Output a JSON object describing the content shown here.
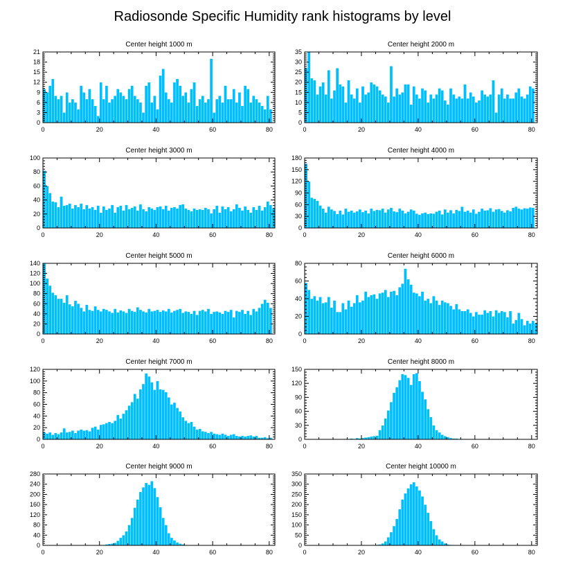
{
  "chart_data": {
    "type": "bar",
    "title": "Radiosonde Specific Humidity rank histograms by level",
    "colors": {
      "bar": "#00BFFF",
      "axis": "#000000",
      "background": "#FFFFFF"
    },
    "panels": [
      {
        "title": "Center height 1000 m",
        "xlim": [
          0,
          82
        ],
        "ylim": [
          0,
          21
        ],
        "xticks": [
          0,
          20,
          40,
          60,
          80
        ],
        "yticks": [
          0,
          3,
          6,
          9,
          12,
          15,
          18,
          21
        ],
        "values": [
          10,
          9,
          11,
          13,
          8,
          7,
          8,
          3,
          9,
          6,
          7,
          6,
          4,
          11,
          9,
          7,
          10,
          7,
          5,
          2,
          12,
          7,
          11,
          6,
          7,
          8,
          10,
          9,
          8,
          7,
          10,
          11,
          8,
          7,
          6,
          3,
          11,
          12,
          6,
          8,
          4,
          14,
          16,
          9,
          7,
          6,
          12,
          13,
          11,
          8,
          9,
          6,
          10,
          12,
          5,
          7,
          8,
          6,
          7,
          19,
          3,
          7,
          8,
          6,
          11,
          7,
          7,
          10,
          6,
          9,
          5,
          11,
          10,
          6,
          8,
          7,
          6,
          5,
          4,
          8,
          4
        ]
      },
      {
        "title": "Center height 2000 m",
        "xlim": [
          0,
          82
        ],
        "ylim": [
          0,
          35
        ],
        "xticks": [
          0,
          20,
          40,
          60,
          80
        ],
        "yticks": [
          0,
          5,
          10,
          15,
          20,
          25,
          30,
          35
        ],
        "values": [
          27,
          35,
          22,
          21,
          14,
          18,
          20,
          14,
          26,
          12,
          16,
          27,
          19,
          18,
          10,
          21,
          14,
          12,
          17,
          10,
          18,
          14,
          15,
          20,
          19,
          18,
          16,
          14,
          13,
          10,
          28,
          13,
          17,
          14,
          15,
          19,
          19,
          9,
          18,
          14,
          12,
          17,
          16,
          10,
          14,
          12,
          14,
          17,
          16,
          11,
          9,
          17,
          14,
          12,
          13,
          12,
          19,
          12,
          15,
          13,
          10,
          11,
          16,
          14,
          13,
          14,
          21,
          5,
          14,
          17,
          12,
          14,
          12,
          12,
          15,
          17,
          13,
          12,
          14,
          18,
          17
        ]
      },
      {
        "title": "Center height 3000 m",
        "xlim": [
          0,
          82
        ],
        "ylim": [
          0,
          100
        ],
        "xticks": [
          0,
          20,
          40,
          60,
          80
        ],
        "yticks": [
          0,
          20,
          40,
          60,
          80,
          100
        ],
        "values": [
          82,
          60,
          50,
          38,
          37,
          30,
          45,
          32,
          33,
          35,
          28,
          33,
          30,
          35,
          27,
          33,
          28,
          30,
          26,
          32,
          22,
          31,
          26,
          28,
          33,
          22,
          30,
          32,
          25,
          33,
          27,
          29,
          31,
          25,
          34,
          27,
          24,
          30,
          28,
          26,
          30,
          31,
          27,
          32,
          25,
          29,
          30,
          28,
          33,
          34,
          28,
          26,
          24,
          28,
          26,
          27,
          26,
          29,
          27,
          21,
          27,
          32,
          22,
          31,
          27,
          30,
          24,
          27,
          34,
          29,
          25,
          31,
          26,
          22,
          30,
          26,
          32,
          25,
          30,
          38,
          33,
          28
        ]
      },
      {
        "title": "Center height 4000 m",
        "xlim": [
          0,
          82
        ],
        "ylim": [
          0,
          180
        ],
        "xticks": [
          0,
          20,
          40,
          60,
          80
        ],
        "yticks": [
          0,
          30,
          60,
          90,
          120,
          150,
          180
        ],
        "values": [
          165,
          120,
          78,
          75,
          70,
          58,
          50,
          40,
          55,
          48,
          44,
          36,
          45,
          35,
          50,
          42,
          45,
          40,
          43,
          48,
          41,
          45,
          38,
          50,
          44,
          47,
          46,
          50,
          40,
          48,
          52,
          43,
          41,
          50,
          45,
          38,
          42,
          48,
          45,
          37,
          34,
          38,
          40,
          36,
          38,
          37,
          42,
          45,
          35,
          48,
          40,
          46,
          38,
          47,
          44,
          55,
          42,
          45,
          40,
          48,
          37,
          42,
          50,
          45,
          46,
          51,
          42,
          48,
          49,
          44,
          40,
          46,
          43,
          52,
          55,
          50,
          48,
          51,
          50,
          53,
          52
        ]
      },
      {
        "title": "Center height 5000 m",
        "xlim": [
          0,
          82
        ],
        "ylim": [
          0,
          140
        ],
        "xticks": [
          0,
          20,
          40,
          60,
          80
        ],
        "yticks": [
          0,
          20,
          40,
          60,
          80,
          100,
          120,
          140
        ],
        "values": [
          140,
          110,
          96,
          82,
          77,
          70,
          70,
          62,
          77,
          59,
          55,
          66,
          60,
          52,
          45,
          58,
          48,
          46,
          55,
          48,
          45,
          50,
          48,
          45,
          42,
          50,
          43,
          47,
          45,
          42,
          50,
          46,
          44,
          53,
          48,
          45,
          43,
          50,
          45,
          46,
          48,
          44,
          47,
          45,
          50,
          43,
          46,
          48,
          50,
          42,
          45,
          44,
          40,
          46,
          38,
          46,
          48,
          45,
          50,
          40,
          44,
          45,
          43,
          40,
          46,
          44,
          48,
          33,
          46,
          44,
          48,
          40,
          46,
          38,
          50,
          45,
          52,
          60,
          68,
          62,
          52
        ]
      },
      {
        "title": "Center height 6000 m",
        "xlim": [
          0,
          82
        ],
        "ylim": [
          0,
          80
        ],
        "xticks": [
          0,
          20,
          40,
          60,
          80
        ],
        "yticks": [
          0,
          20,
          40,
          60,
          80
        ],
        "values": [
          58,
          50,
          40,
          43,
          38,
          42,
          35,
          36,
          42,
          30,
          38,
          25,
          25,
          35,
          28,
          38,
          31,
          35,
          44,
          36,
          38,
          48,
          42,
          44,
          45,
          40,
          46,
          47,
          50,
          42,
          48,
          49,
          44,
          53,
          57,
          74,
          62,
          56,
          47,
          46,
          43,
          48,
          38,
          40,
          35,
          43,
          38,
          33,
          38,
          36,
          35,
          32,
          28,
          34,
          28,
          26,
          26,
          28,
          24,
          20,
          25,
          22,
          22,
          27,
          24,
          26,
          20,
          27,
          24,
          26,
          25,
          19,
          26,
          12,
          16,
          24,
          17,
          10,
          15,
          12,
          15,
          12
        ]
      },
      {
        "title": "Center height 7000 m",
        "xlim": [
          0,
          82
        ],
        "ylim": [
          0,
          120
        ],
        "xticks": [
          0,
          20,
          40,
          60,
          80
        ],
        "yticks": [
          0,
          20,
          40,
          60,
          80,
          100,
          120
        ],
        "values": [
          12,
          10,
          12,
          8,
          11,
          9,
          12,
          19,
          12,
          13,
          15,
          11,
          15,
          17,
          15,
          16,
          14,
          20,
          22,
          17,
          25,
          26,
          28,
          30,
          28,
          32,
          42,
          36,
          44,
          50,
          58,
          64,
          78,
          70,
          86,
          95,
          113,
          108,
          98,
          85,
          100,
          86,
          85,
          81,
          72,
          60,
          63,
          54,
          48,
          38,
          32,
          28,
          30,
          22,
          17,
          18,
          14,
          13,
          11,
          13,
          10,
          9,
          8,
          10,
          8,
          6,
          8,
          9,
          6,
          5,
          6,
          5,
          6,
          7,
          5,
          6,
          3,
          3,
          4,
          2,
          3
        ]
      },
      {
        "title": "Center height 8000 m",
        "xlim": [
          0,
          82
        ],
        "ylim": [
          0,
          150
        ],
        "xticks": [
          0,
          20,
          40,
          60,
          80
        ],
        "yticks": [
          0,
          30,
          60,
          90,
          120,
          150
        ],
        "values": [
          0,
          0,
          0,
          0,
          0,
          0,
          0,
          0,
          0,
          0,
          0,
          0,
          0,
          0,
          1,
          1,
          2,
          1,
          3,
          2,
          3,
          4,
          5,
          6,
          7,
          8,
          20,
          30,
          45,
          62,
          80,
          100,
          112,
          127,
          140,
          138,
          132,
          117,
          140,
          142,
          125,
          102,
          86,
          65,
          48,
          30,
          20,
          15,
          10,
          7,
          5,
          3,
          2,
          2,
          1,
          1,
          1,
          0,
          0,
          0,
          0,
          0,
          0,
          0,
          0,
          0,
          0,
          0,
          0,
          0,
          0,
          0,
          0,
          0,
          0,
          0,
          0,
          0,
          0,
          0,
          0
        ]
      },
      {
        "title": "Center height 9000 m",
        "xlim": [
          0,
          82
        ],
        "ylim": [
          0,
          280
        ],
        "xticks": [
          0,
          20,
          40,
          60,
          80
        ],
        "yticks": [
          0,
          40,
          80,
          120,
          160,
          200,
          240,
          280
        ],
        "values": [
          0,
          0,
          0,
          0,
          0,
          0,
          0,
          0,
          0,
          0,
          0,
          0,
          0,
          0,
          0,
          0,
          0,
          0,
          0,
          0,
          2,
          2,
          4,
          6,
          7,
          10,
          18,
          30,
          40,
          55,
          80,
          108,
          148,
          180,
          210,
          228,
          245,
          238,
          252,
          225,
          190,
          150,
          108,
          80,
          48,
          30,
          20,
          12,
          7,
          4,
          2,
          1,
          1,
          0,
          0,
          0,
          0,
          0,
          0,
          0,
          0,
          0,
          0,
          0,
          0,
          0,
          0,
          0,
          0,
          0,
          0,
          0,
          0,
          0,
          0,
          0,
          0,
          0,
          0,
          0,
          0
        ]
      },
      {
        "title": "Center height 10000 m",
        "xlim": [
          0,
          82
        ],
        "ylim": [
          0,
          350
        ],
        "xticks": [
          0,
          20,
          40,
          60,
          80
        ],
        "yticks": [
          0,
          50,
          100,
          150,
          200,
          250,
          300,
          350
        ],
        "values": [
          0,
          0,
          0,
          0,
          0,
          0,
          0,
          0,
          0,
          0,
          0,
          0,
          0,
          0,
          0,
          0,
          0,
          0,
          0,
          0,
          0,
          0,
          0,
          1,
          2,
          3,
          5,
          10,
          20,
          40,
          65,
          95,
          130,
          178,
          225,
          255,
          280,
          300,
          310,
          290,
          270,
          240,
          200,
          160,
          120,
          80,
          50,
          30,
          20,
          10,
          5,
          3,
          2,
          1,
          0,
          0,
          0,
          0,
          0,
          0,
          0,
          0,
          0,
          0,
          0,
          0,
          0,
          0,
          0,
          0,
          0,
          0,
          0,
          0,
          0,
          0,
          0,
          0,
          0,
          0,
          0
        ]
      }
    ]
  }
}
